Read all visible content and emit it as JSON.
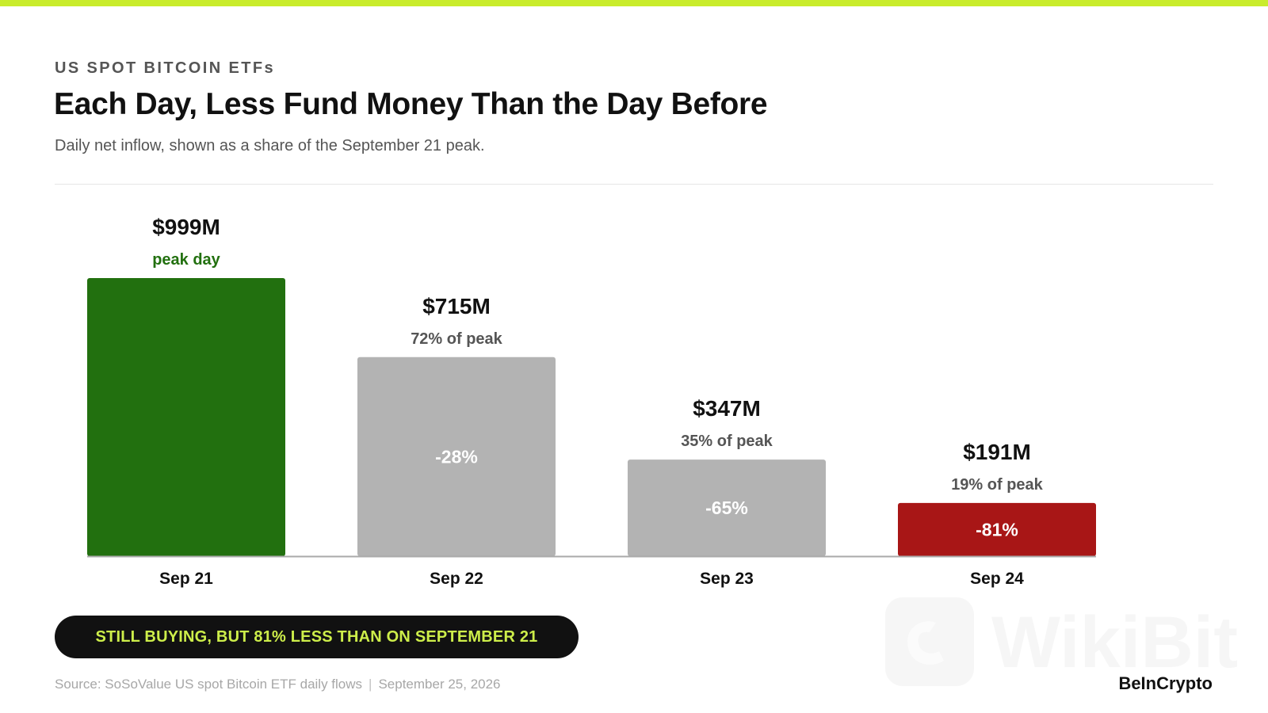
{
  "header": {
    "kicker": "US SPOT BITCOIN ETFs",
    "title": "Each Day, Less Fund Money Than the Day Before",
    "subtitle": "Daily net inflow, shown as a share of the September 21 peak."
  },
  "chart_data": {
    "type": "bar",
    "categories": [
      "Sep 21",
      "Sep 22",
      "Sep 23",
      "Sep 24"
    ],
    "values": [
      999,
      715,
      347,
      191
    ],
    "unit": "$M",
    "ylim": [
      0,
      999
    ],
    "value_labels": [
      "$999M",
      "$715M",
      "$347M",
      "$191M"
    ],
    "share_labels": [
      "peak day",
      "72% of peak",
      "35% of peak",
      "19% of peak"
    ],
    "change_labels": [
      "",
      "-28%",
      "-65%",
      "-81%"
    ],
    "bar_colors": [
      "#22700f",
      "#b3b3b3",
      "#b3b3b3",
      "#a81616"
    ],
    "share_label_colors": [
      "#22700f",
      "#555555",
      "#555555",
      "#555555"
    ],
    "grid": false
  },
  "callout": {
    "text": "STILL BUYING, BUT 81% LESS THAN ON SEPTEMBER 21"
  },
  "footer": {
    "source": "Source: SoSoValue US spot Bitcoin ETF daily flows",
    "separator": "|",
    "date": "September 25, 2026",
    "brand": "BeInCrypto"
  },
  "watermark": {
    "text": "WikiBit"
  },
  "colors": {
    "accent": "#c9ec2c",
    "banner_text": "#cdee4a"
  }
}
